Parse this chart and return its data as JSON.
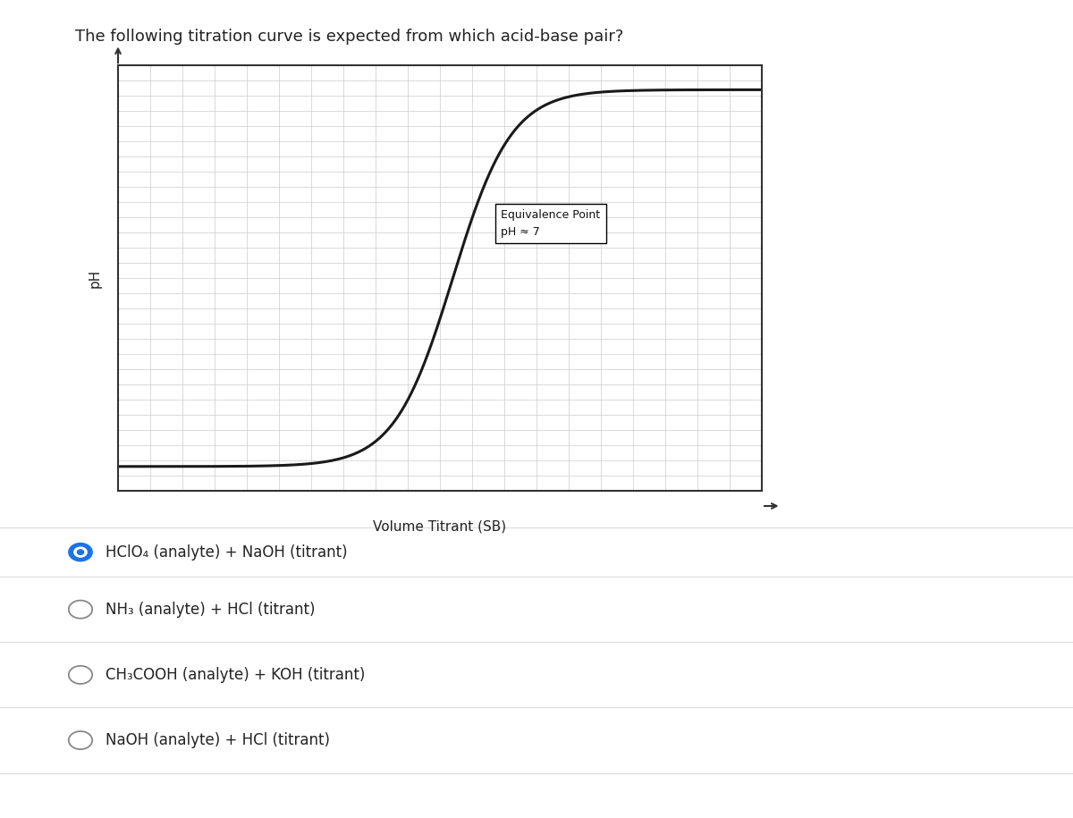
{
  "title": "The following titration curve is expected from which acid-base pair?",
  "xlabel": "Volume Titrant (SB)",
  "ylabel": "pH",
  "background_color": "#ffffff",
  "plot_bg_color": "#ffffff",
  "grid_color": "#cccccc",
  "curve_color": "#1a1a1a",
  "curve_linewidth": 2.2,
  "eq_box_text_line1": "Equivalence Point",
  "eq_box_text_line2": "pH ≈ 7",
  "options": [
    {
      "text": "HClO₄ (analyte) + NaOH (titrant)",
      "selected": true
    },
    {
      "text": "NH₃ (analyte) + HCl (titrant)",
      "selected": false
    },
    {
      "text": "CH₃COOH (analyte) + KOH (titrant)",
      "selected": false
    },
    {
      "text": "NaOH (analyte) + HCl (titrant)",
      "selected": false
    }
  ],
  "title_fontsize": 13,
  "axis_label_fontsize": 10,
  "option_fontsize": 12,
  "eq_fontsize": 9,
  "fig_width": 12.0,
  "fig_height": 9.15,
  "fig_dpi": 100,
  "selected_color": "#1a73e8",
  "unselected_color": "#888888",
  "separator_color": "#dddddd"
}
